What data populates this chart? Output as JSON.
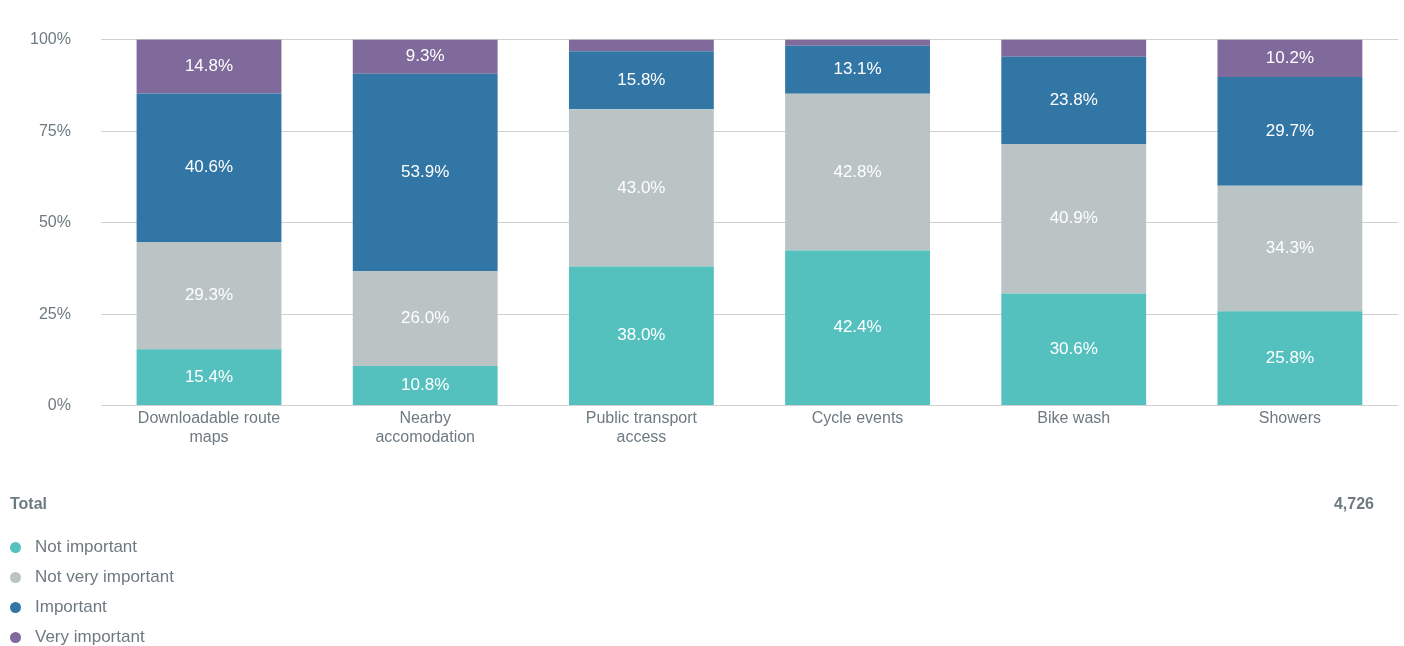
{
  "chart_data": {
    "type": "bar",
    "stacked": true,
    "categories": [
      "Downloadable route maps",
      "Nearby accomodation",
      "Public transport access",
      "Cycle events",
      "Bike wash",
      "Showers"
    ],
    "series": [
      {
        "name": "Not important",
        "color": "#55c1bf",
        "values": [
          15.4,
          10.8,
          38.0,
          42.4,
          30.6,
          25.8
        ],
        "value_labels": [
          "15.4%",
          "10.8%",
          "38.0%",
          "42.4%",
          "30.6%",
          "25.8%"
        ]
      },
      {
        "name": "Not very important",
        "color": "#bac4c4",
        "values": [
          29.3,
          26.0,
          43.0,
          42.8,
          40.9,
          34.3
        ],
        "value_labels": [
          "29.3%",
          "26.0%",
          "43.0%",
          "42.8%",
          "40.9%",
          "34.3%"
        ]
      },
      {
        "name": "Important",
        "color": "#3276a5",
        "values": [
          40.6,
          53.9,
          15.8,
          13.1,
          23.8,
          29.7
        ],
        "value_labels": [
          "40.6%",
          "53.9%",
          "15.8%",
          "13.1%",
          "23.8%",
          "29.7%"
        ]
      },
      {
        "name": "Very important",
        "color": "#7f6a9b",
        "values": [
          14.8,
          9.3,
          3.2,
          1.7,
          4.7,
          10.2
        ],
        "value_labels": [
          "14.8%",
          "9.3%",
          null,
          null,
          null,
          "10.2%"
        ]
      }
    ],
    "ylim": [
      0,
      100
    ],
    "yticks": [
      {
        "value": 0,
        "label": "0%"
      },
      {
        "value": 25,
        "label": "25%"
      },
      {
        "value": 50,
        "label": "50%"
      },
      {
        "value": 75,
        "label": "75%"
      },
      {
        "value": 100,
        "label": "100%"
      }
    ],
    "grid": "y",
    "legend": "bottom",
    "marker": "circle",
    "annotations": [
      "Total",
      "4,726"
    ]
  }
}
